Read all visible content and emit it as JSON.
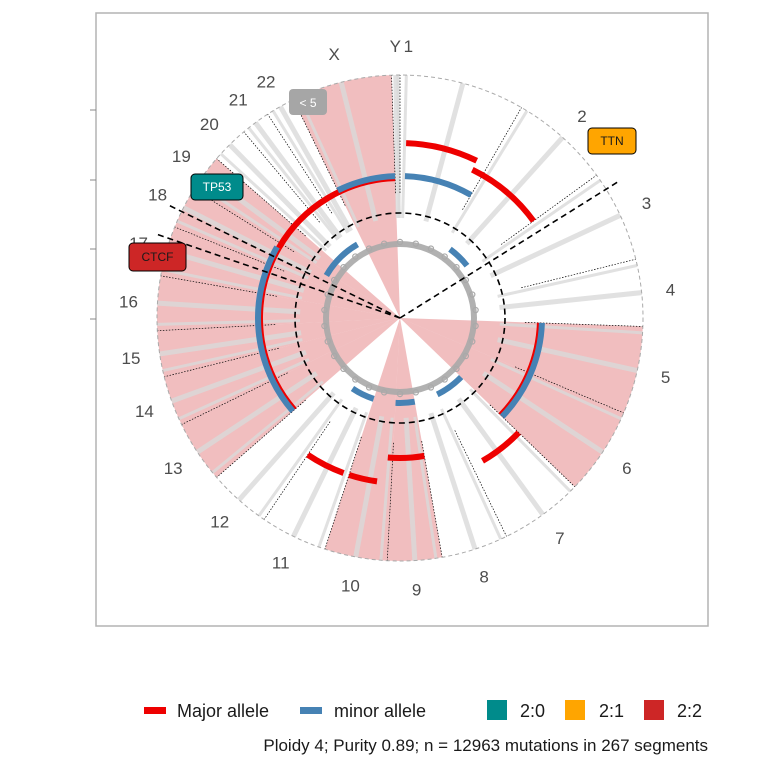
{
  "chart_data": {
    "type": "circos",
    "chromosomes": [
      {
        "name": "1",
        "angle_start": 0,
        "angle_end": 30,
        "label": "",
        "shaded": false
      },
      {
        "name": "2",
        "angle_start": 30,
        "angle_end": 54,
        "label": "2",
        "shaded": false
      },
      {
        "name": "3",
        "angle_start": 54,
        "angle_end": 76,
        "label": "3",
        "shaded": false
      },
      {
        "name": "4",
        "angle_start": 76,
        "angle_end": 92,
        "label": "4",
        "shaded": false
      },
      {
        "name": "5",
        "angle_start": 92,
        "angle_end": 113,
        "label": "5",
        "shaded": true
      },
      {
        "name": "6",
        "angle_start": 113,
        "angle_end": 134,
        "label": "6",
        "shaded": true
      },
      {
        "name": "7",
        "angle_start": 134,
        "angle_end": 154,
        "label": "7",
        "shaded": false
      },
      {
        "name": "8",
        "angle_start": 154,
        "angle_end": 170,
        "label": "8",
        "shaded": false
      },
      {
        "name": "9",
        "angle_start": 170,
        "angle_end": 183,
        "label": "9",
        "shaded": true
      },
      {
        "name": "10",
        "angle_start": 183,
        "angle_end": 198,
        "label": "10",
        "shaded": true
      },
      {
        "name": "11",
        "angle_start": 198,
        "angle_end": 214,
        "label": "11",
        "shaded": false
      },
      {
        "name": "12",
        "angle_start": 214,
        "angle_end": 229,
        "label": "12",
        "shaded": false
      },
      {
        "name": "13",
        "angle_start": 229,
        "angle_end": 244,
        "label": "13",
        "shaded": true
      },
      {
        "name": "14",
        "angle_start": 244,
        "angle_end": 256,
        "label": "14",
        "shaded": true
      },
      {
        "name": "15",
        "angle_start": 256,
        "angle_end": 267,
        "label": "15",
        "shaded": true
      },
      {
        "name": "16",
        "angle_start": 267,
        "angle_end": 280,
        "label": "16",
        "shaded": true
      },
      {
        "name": "17",
        "angle_start": 280,
        "angle_end": 292,
        "label": "17",
        "shaded": true
      },
      {
        "name": "18",
        "angle_start": 292,
        "angle_end": 302,
        "label": "18",
        "shaded": true
      },
      {
        "name": "19",
        "angle_start": 302,
        "angle_end": 311,
        "label": "19",
        "shaded": true
      },
      {
        "name": "20",
        "angle_start": 311,
        "angle_end": 320,
        "label": "20",
        "shaded": false
      },
      {
        "name": "21",
        "angle_start": 320,
        "angle_end": 327,
        "label": "21",
        "shaded": false
      },
      {
        "name": "22",
        "angle_start": 327,
        "angle_end": 334,
        "label": "22",
        "shaded": false
      },
      {
        "name": "X",
        "angle_start": 334,
        "angle_end": 358,
        "label": "X",
        "shaded": true
      },
      {
        "name": "Y",
        "angle_start": 358,
        "angle_end": 360,
        "label": "Y",
        "shaded": false
      }
    ],
    "label_one": "1",
    "tracks": {
      "major_allele": [
        {
          "from": 2,
          "to": 26,
          "cn": 4
        },
        {
          "from": 26,
          "to": 54,
          "cn": 3
        },
        {
          "from": 92,
          "to": 134,
          "cn": 2
        },
        {
          "from": 134,
          "to": 150,
          "cn": 3
        },
        {
          "from": 170,
          "to": 185,
          "cn": 2
        },
        {
          "from": 188,
          "to": 198,
          "cn": 3
        },
        {
          "from": 200,
          "to": 214,
          "cn": 3
        },
        {
          "from": 229,
          "to": 244,
          "cn": 2
        },
        {
          "from": 244,
          "to": 300,
          "cn": 2
        },
        {
          "from": 300,
          "to": 358,
          "cn": 2
        }
      ],
      "minor_allele": [
        {
          "from": 2,
          "to": 30,
          "cn": 2
        },
        {
          "from": 36,
          "to": 52,
          "cn": 1
        },
        {
          "from": 92,
          "to": 134,
          "cn": 2
        },
        {
          "from": 134,
          "to": 154,
          "cn": 1
        },
        {
          "from": 170,
          "to": 183,
          "cn": 1
        },
        {
          "from": 198,
          "to": 214,
          "cn": 1
        },
        {
          "from": 229,
          "to": 300,
          "cn": 2
        },
        {
          "from": 300,
          "to": 330,
          "cn": 1
        },
        {
          "from": 334,
          "to": 358,
          "cn": 2
        }
      ]
    },
    "drivers": [
      {
        "gene": "TTN",
        "angle": 58,
        "clonality": "2:1"
      },
      {
        "gene": "TP53",
        "angle": 296,
        "clonality": "2:0"
      },
      {
        "gene": "CTCF",
        "angle": 289,
        "clonality": "2:2"
      }
    ],
    "subclonal_label": "< 5",
    "legend": {
      "major_label": "Major allele",
      "minor_label": "minor allele",
      "major_color": "#ee0000",
      "minor_color": "#4682b4",
      "categories": [
        {
          "label": "2:0",
          "color": "#008b8b"
        },
        {
          "label": "2:1",
          "color": "#ffa500"
        },
        {
          "label": "2:2",
          "color": "#cd2626"
        }
      ]
    },
    "caption": "Ploidy 4; Purity  0.89; n = 12963 mutations in 267 segments",
    "colors": {
      "shade": "#e47d7f",
      "grey_bar": "#d9d9d9",
      "mutation_points": "#a9a9a9",
      "frame": "#b3b3b3"
    }
  }
}
